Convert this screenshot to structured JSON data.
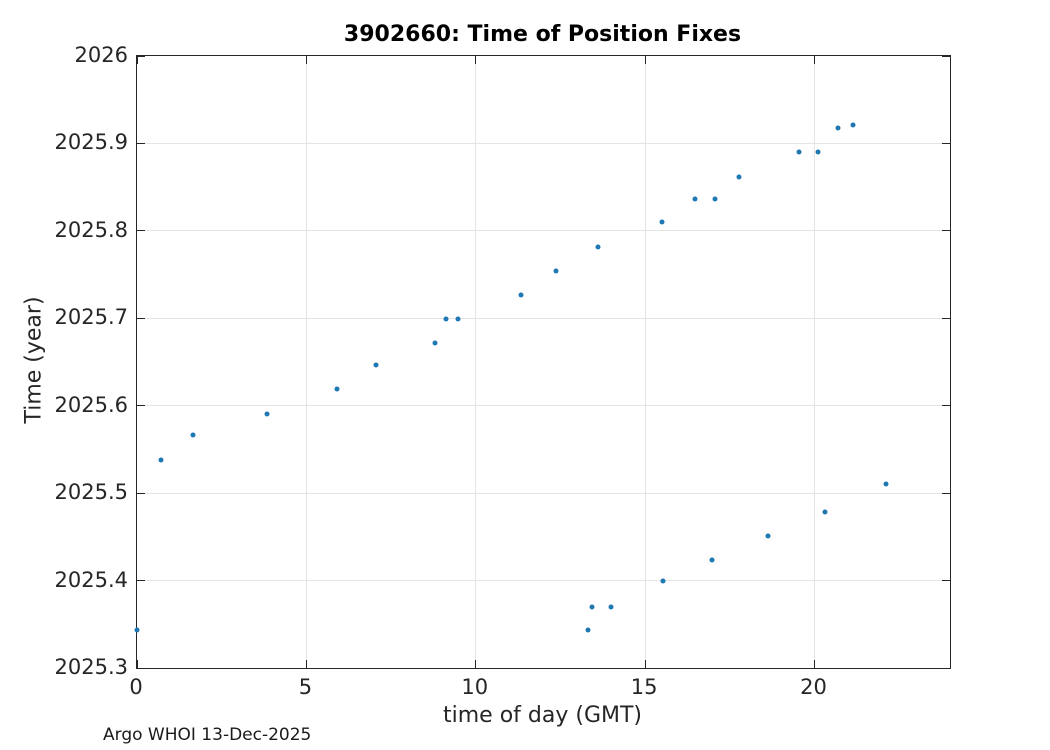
{
  "figure": {
    "footer": "Argo WHOI 13-Dec-2025",
    "background": "#ffffff"
  },
  "chart_data": {
    "type": "scatter",
    "title": "3902660: Time of Position Fixes",
    "xlabel": "time of day (GMT)",
    "ylabel": "Time (year)",
    "xlim": [
      0,
      24
    ],
    "ylim": [
      2025.3,
      2026
    ],
    "xticks": [
      0,
      5,
      10,
      15,
      20
    ],
    "xtick_labels": [
      "0",
      "5",
      "10",
      "15",
      "20"
    ],
    "yticks": [
      2025.3,
      2025.4,
      2025.5,
      2025.6,
      2025.7,
      2025.8,
      2025.9,
      2026
    ],
    "ytick_labels": [
      "2025.3",
      "2025.4",
      "2025.5",
      "2025.6",
      "2025.7",
      "2025.8",
      "2025.9",
      "2026"
    ],
    "grid": true,
    "legend_position": "none",
    "colors": {
      "marker": "#1f77b4",
      "axis": "#262626",
      "grid": "#e4e4e4",
      "title": "#000000",
      "tick_label": "#262626"
    },
    "series": [
      {
        "name": "position-fixes",
        "marker": "point",
        "color": "#1f77b4",
        "points": [
          [
            13.32,
            2025.343
          ],
          [
            0.01,
            2025.344
          ],
          [
            13.43,
            2025.37
          ],
          [
            13.99,
            2025.37
          ],
          [
            15.53,
            2025.399
          ],
          [
            16.98,
            2025.424
          ],
          [
            18.62,
            2025.451
          ],
          [
            20.31,
            2025.479
          ],
          [
            22.11,
            2025.51
          ],
          [
            0.72,
            2025.538
          ],
          [
            1.65,
            2025.566
          ],
          [
            3.85,
            2025.591
          ],
          [
            5.89,
            2025.619
          ],
          [
            7.05,
            2025.646
          ],
          [
            8.8,
            2025.672
          ],
          [
            9.13,
            2025.699
          ],
          [
            9.48,
            2025.699
          ],
          [
            11.33,
            2025.727
          ],
          [
            12.37,
            2025.754
          ],
          [
            13.62,
            2025.782
          ],
          [
            15.5,
            2025.81
          ],
          [
            16.48,
            2025.836
          ],
          [
            17.06,
            2025.836
          ],
          [
            17.78,
            2025.862
          ],
          [
            19.55,
            2025.89
          ],
          [
            20.09,
            2025.89
          ],
          [
            20.7,
            2025.918
          ],
          [
            21.14,
            2025.921
          ]
        ]
      }
    ]
  }
}
